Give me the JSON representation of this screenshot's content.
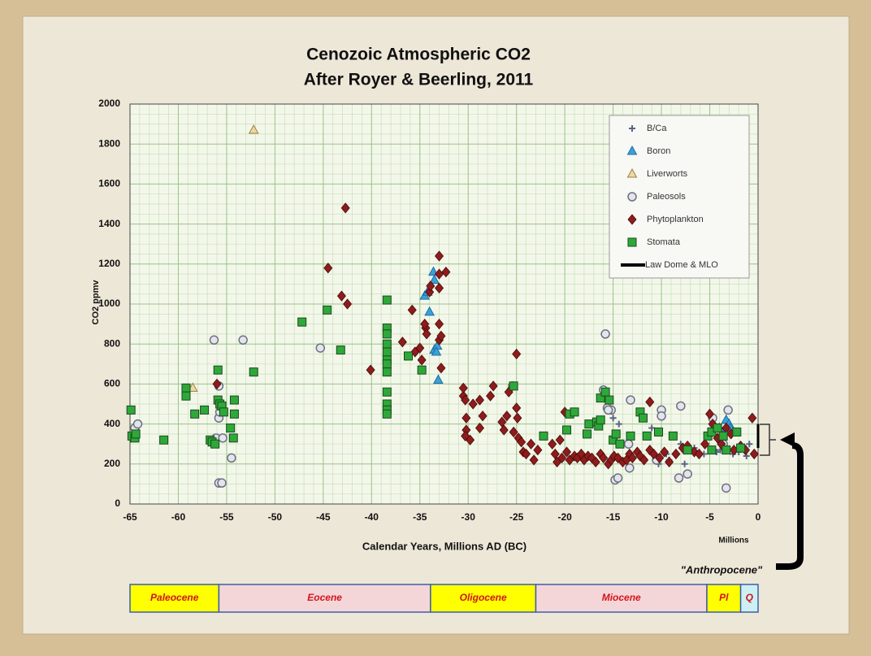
{
  "chart_data": {
    "type": "scatter",
    "title": "Cenozoic Atmospheric CO2",
    "subtitle": "After Royer & Beerling, 2011",
    "x_label": "Calendar Years, Millions AD (BC)",
    "y_label": "CO2 ppmv",
    "x_unit_note": "Millions",
    "annotation": "\"Anthropocene\"",
    "xlim": [
      -65,
      0
    ],
    "ylim": [
      0,
      2000
    ],
    "xticks": [
      -65,
      -60,
      -55,
      -50,
      -45,
      -40,
      -35,
      -30,
      -25,
      -20,
      -15,
      -10,
      -5,
      0
    ],
    "yticks": [
      0,
      200,
      400,
      600,
      800,
      1000,
      1200,
      1400,
      1600,
      1800,
      2000
    ],
    "grid": true,
    "minor_grid": {
      "x": 1,
      "y": 50
    },
    "legend": "top-right",
    "series": [
      {
        "name": "B/Ca",
        "marker": "plus",
        "color": "#5a6385",
        "x": [
          -15,
          -14.4,
          -11,
          -10.3,
          -9.5,
          -9.2,
          -8,
          -7.6,
          -6.6,
          -5.6,
          -4.3,
          -3.9,
          -3.5,
          -2.6,
          -2,
          -1.2,
          -0.9
        ],
        "y": [
          430,
          400,
          380,
          200,
          250,
          220,
          300,
          200,
          280,
          250,
          260,
          270,
          300,
          250,
          260,
          240,
          300
        ]
      },
      {
        "name": "Boron",
        "marker": "triangle",
        "color": "#3aa0dc",
        "x": [
          -34.5,
          -34.2,
          -34,
          -33.6,
          -33.5,
          -33.5,
          -33.2,
          -33.3,
          -33.1,
          -4,
          -3.3,
          -3,
          -2.9
        ],
        "y": [
          1040,
          1060,
          960,
          1160,
          1120,
          770,
          790,
          760,
          620,
          380,
          420,
          400,
          380
        ]
      },
      {
        "name": "Liverworts",
        "marker": "open-triangle",
        "color": "#9c8040",
        "x": [
          -58.5,
          -52.2
        ],
        "y": [
          580,
          1870
        ]
      },
      {
        "name": "Paleosols",
        "marker": "circle",
        "color": "#6e7080",
        "x": [
          -64.5,
          -64.2,
          -56.3,
          -56.1,
          -55.8,
          -55.8,
          -55.7,
          -55.8,
          -55.5,
          -55.4,
          -54.5,
          -53.3,
          -45.3,
          -25.4,
          -16,
          -15.8,
          -15.6,
          -15.2,
          -15.5,
          -14.8,
          -14.5,
          -13.2,
          -13.3,
          -13.4,
          -10.5,
          -10,
          -10,
          -8.2,
          -8,
          -7.3,
          -4.7,
          -3.3,
          -3.1,
          -3.6
        ],
        "y": [
          380,
          400,
          820,
          330,
          590,
          430,
          460,
          105,
          105,
          330,
          230,
          820,
          780,
          590,
          570,
          850,
          480,
          470,
          470,
          120,
          130,
          520,
          180,
          300,
          220,
          470,
          440,
          130,
          490,
          150,
          430,
          80,
          470,
          300
        ]
      },
      {
        "name": "Phytoplankton",
        "marker": "diamond",
        "color": "#8e1c1c",
        "x": [
          -56,
          -44.5,
          -43.1,
          -42.7,
          -42.5,
          -40.1,
          -36.8,
          -35.5,
          -35.8,
          -35,
          -34.8,
          -34.4,
          -34.5,
          -34.3,
          -34,
          -33.9,
          -33,
          -33,
          -33,
          -33,
          -33,
          -32.8,
          -32.8,
          -32.3,
          -30.5,
          -30.5,
          -30.3,
          -30.2,
          -30.2,
          -30.3,
          -29.8,
          -29.5,
          -28.8,
          -28.5,
          -28.8,
          -27.7,
          -27.4,
          -26.5,
          -26.3,
          -26,
          -25.8,
          -25.3,
          -25,
          -25,
          -24.9,
          -24.8,
          -24.5,
          -24.3,
          -24,
          -23.5,
          -23.2,
          -22.8,
          -21.3,
          -21,
          -20.8,
          -20.5,
          -20.3,
          -20,
          -19.8,
          -19.5,
          -19,
          -18.7,
          -18.3,
          -18,
          -17.6,
          -17.2,
          -16.8,
          -16.3,
          -16,
          -15.5,
          -15.2,
          -14.9,
          -14.5,
          -14,
          -13.6,
          -13.3,
          -13,
          -12.5,
          -12.2,
          -11.8,
          -11.2,
          -11.2,
          -10.8,
          -10.2,
          -9.7,
          -9.2,
          -8.5,
          -7.8,
          -7.3,
          -6.6,
          -6.1,
          -5.5,
          -5,
          -4.7,
          -4.2,
          -3.8,
          -3.3,
          -2.8,
          -2.5,
          -1.8,
          -1.3,
          -0.6,
          -0.4
        ],
        "y": [
          600,
          1180,
          1040,
          1480,
          1000,
          670,
          810,
          760,
          970,
          780,
          720,
          880,
          900,
          850,
          1060,
          1090,
          1240,
          1150,
          1080,
          900,
          820,
          840,
          680,
          1160,
          540,
          580,
          520,
          430,
          370,
          340,
          320,
          500,
          520,
          440,
          380,
          540,
          590,
          410,
          370,
          440,
          560,
          360,
          750,
          480,
          430,
          330,
          310,
          260,
          250,
          300,
          220,
          270,
          300,
          250,
          210,
          320,
          230,
          460,
          260,
          220,
          240,
          230,
          250,
          220,
          240,
          230,
          210,
          250,
          230,
          200,
          220,
          240,
          230,
          210,
          220,
          250,
          230,
          260,
          240,
          220,
          510,
          270,
          250,
          230,
          260,
          210,
          250,
          280,
          290,
          260,
          250,
          300,
          450,
          400,
          330,
          300,
          380,
          350,
          270,
          290,
          270,
          430,
          250
        ]
      },
      {
        "name": "Stomata",
        "marker": "square",
        "color": "#2ea83a",
        "x": [
          -64.9,
          -64.8,
          -64.5,
          -64.4,
          -61.5,
          -59.2,
          -59.2,
          -58.3,
          -57.3,
          -56.7,
          -56.5,
          -56.2,
          -55.9,
          -55.9,
          -55.7,
          -55.5,
          -55.3,
          -54.6,
          -54.3,
          -54.2,
          -54.2,
          -52.2,
          -47.2,
          -44.6,
          -43.2,
          -38.4,
          -38.4,
          -38.4,
          -38.4,
          -38.4,
          -38.4,
          -38.4,
          -38.4,
          -38.4,
          -38.4,
          -38.4,
          -38.4,
          -36.2,
          -34.8,
          -25.3,
          -22.2,
          -19.8,
          -19.5,
          -19,
          -17.7,
          -17.5,
          -16.7,
          -16.5,
          -16.3,
          -16.3,
          -15.8,
          -15.4,
          -15,
          -14.7,
          -14.3,
          -13.2,
          -12.2,
          -11.9,
          -11.5,
          -10.3,
          -8.8,
          -7.3,
          -5.2,
          -4.8,
          -4.8,
          -4.2,
          -3.6,
          -3.3,
          -2.2,
          -1.8
        ],
        "y": [
          470,
          340,
          330,
          350,
          320,
          580,
          540,
          450,
          470,
          320,
          310,
          300,
          520,
          670,
          500,
          490,
          460,
          380,
          330,
          520,
          450,
          660,
          910,
          970,
          770,
          1020,
          880,
          850,
          800,
          760,
          720,
          700,
          660,
          560,
          500,
          470,
          450,
          740,
          670,
          590,
          340,
          370,
          450,
          460,
          350,
          400,
          410,
          390,
          420,
          530,
          560,
          520,
          320,
          350,
          300,
          340,
          460,
          430,
          340,
          360,
          340,
          270,
          340,
          360,
          270,
          380,
          340,
          270,
          360,
          280
        ]
      },
      {
        "name": "Law Dome & MLO",
        "marker": "line",
        "color": "#000000",
        "x": [
          0,
          0
        ],
        "y": [
          280,
          400
        ]
      }
    ],
    "epochs": [
      {
        "name": "Paleocene",
        "start": -65,
        "end": -55.8,
        "color": "#ffff00"
      },
      {
        "name": "Eocene",
        "start": -55.8,
        "end": -33.9,
        "color": "#f5d6d8"
      },
      {
        "name": "Oligocene",
        "start": -33.9,
        "end": -23,
        "color": "#ffff00"
      },
      {
        "name": "Miocene",
        "start": -23,
        "end": -5.3,
        "color": "#f5d6d8"
      },
      {
        "name": "Pl",
        "start": -5.3,
        "end": -1.8,
        "color": "#ffff00"
      },
      {
        "name": "Q",
        "start": -1.8,
        "end": 0,
        "color": "#cdf1f3"
      }
    ],
    "epoch_label_color": "#d4141c"
  }
}
